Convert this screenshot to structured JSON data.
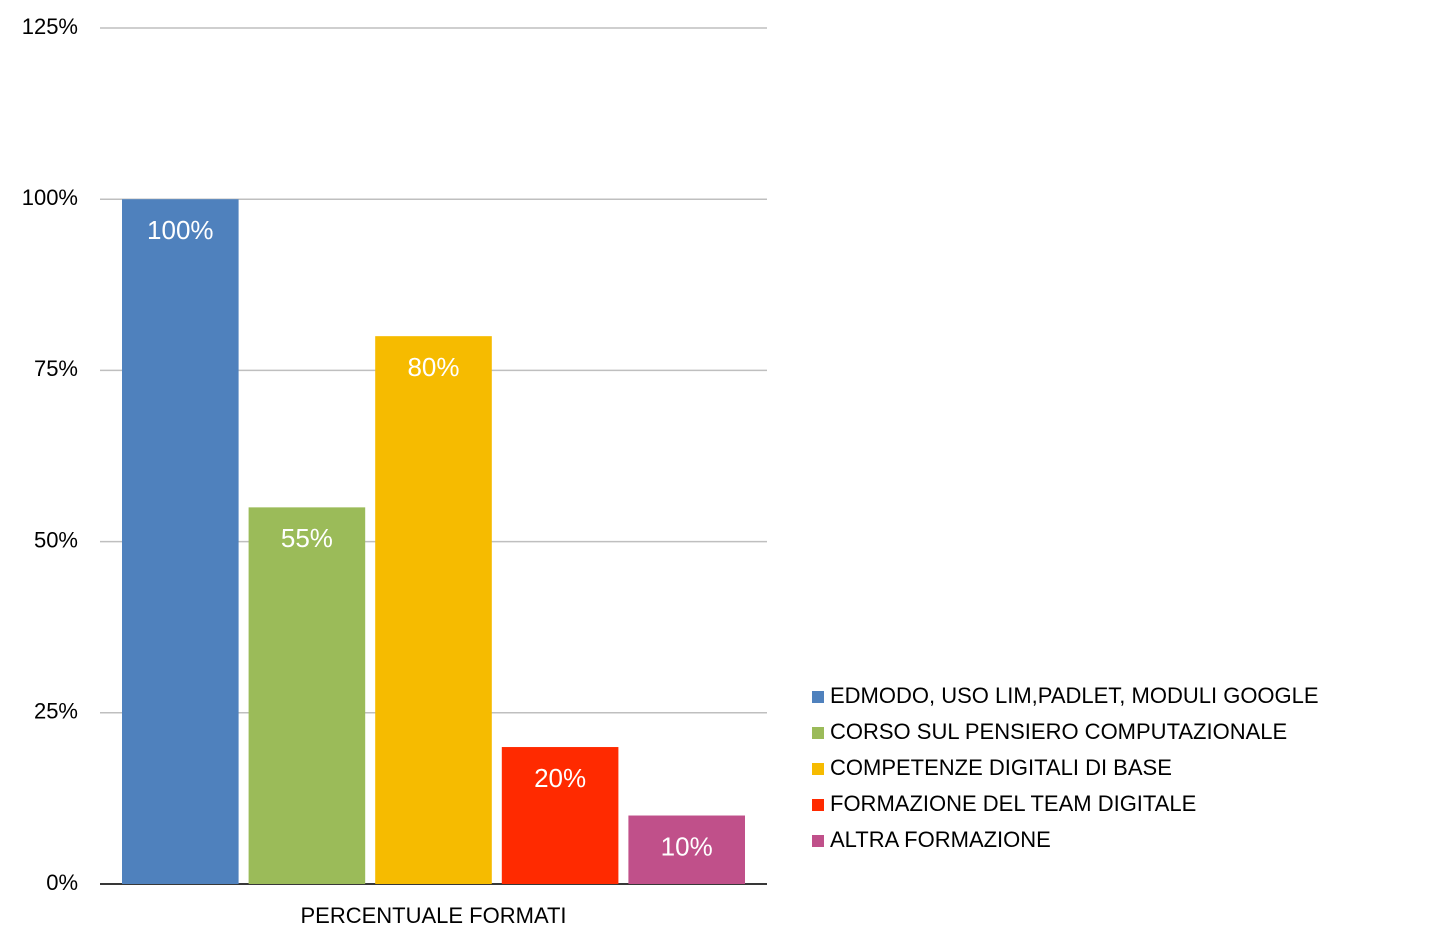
{
  "chart_data": {
    "type": "bar",
    "categories": [
      "PERCENTUALE FORMATI"
    ],
    "series": [
      {
        "name": "EDMODO, USO LIM,PADLET, MODULI GOOGLE",
        "color": "#4f81bd",
        "values": [
          100
        ],
        "value_labels": [
          "100%"
        ]
      },
      {
        "name": "CORSO SUL PENSIERO COMPUTAZIONALE",
        "color": "#9bbb59",
        "values": [
          55
        ],
        "value_labels": [
          "55%"
        ]
      },
      {
        "name": "COMPETENZE DIGITALI DI BASE",
        "color": "#f6bb00",
        "values": [
          80
        ],
        "value_labels": [
          "80%"
        ]
      },
      {
        "name": "FORMAZIONE DEL TEAM DIGITALE",
        "color": "#ff2a00",
        "values": [
          20
        ],
        "value_labels": [
          "20%"
        ]
      },
      {
        "name": "ALTRA FORMAZIONE",
        "color": "#c0508a",
        "values": [
          10
        ],
        "value_labels": [
          "10%"
        ]
      }
    ],
    "ylim": [
      0,
      125
    ],
    "yticks": [
      {
        "value": 0,
        "label": "0%"
      },
      {
        "value": 25,
        "label": "25%"
      },
      {
        "value": 50,
        "label": "50%"
      },
      {
        "value": 75,
        "label": "75%"
      },
      {
        "value": 100,
        "label": "100%"
      },
      {
        "value": 125,
        "label": "125%"
      }
    ],
    "grid": true,
    "legend": "right"
  }
}
